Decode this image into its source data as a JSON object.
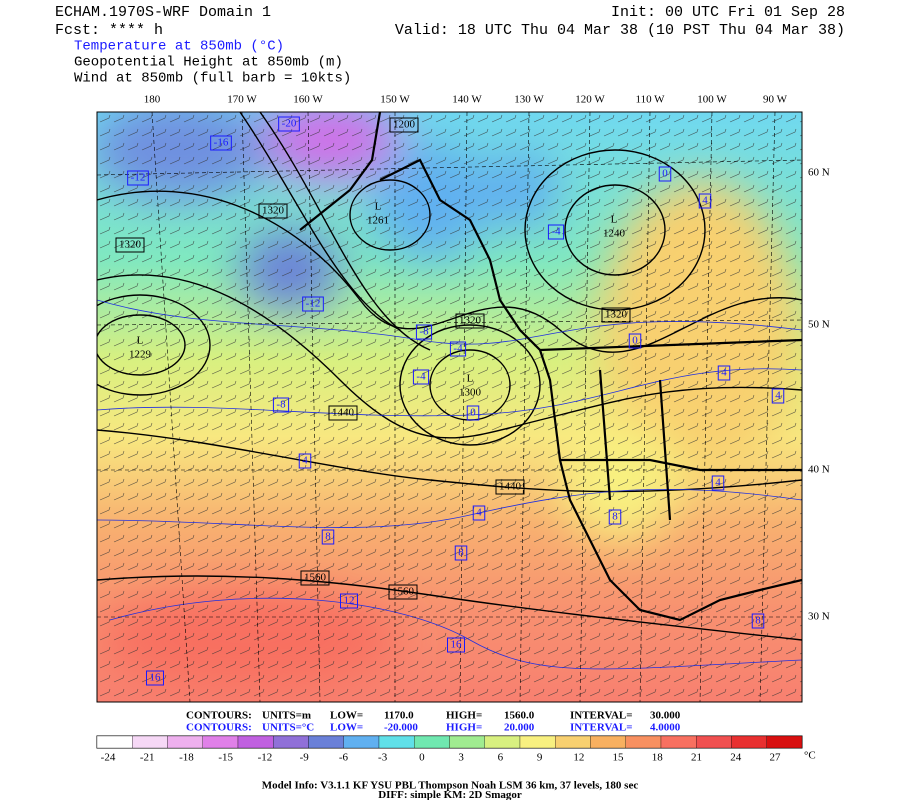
{
  "header": {
    "left": [
      "ECHAM.1970S-WRF Domain 1",
      "Fcst: **** h"
    ],
    "right": [
      "Init: 00 UTC Fri 01 Sep 28",
      "Valid: 18 UTC Thu 04 Mar 38 (10 PST Thu 04 Mar 38)"
    ],
    "fields": [
      "Temperature at 850mb (°C)",
      "Geopotential Height at 850mb (m)",
      "Wind at 850mb (full barb = 10kts)"
    ]
  },
  "longitudes": [
    "180",
    "170 W",
    "160 W",
    "150 W",
    "140 W",
    "130 W",
    "120 W",
    "110 W",
    "100 W",
    "90 W"
  ],
  "latitudes": [
    "60 N",
    "50 N",
    "40 N",
    "30 N"
  ],
  "height_labels": [
    "1200",
    "1320",
    "1320",
    "1320",
    "1320",
    "1440",
    "1440",
    "1560",
    "1560"
  ],
  "temp_labels": [
    "-16",
    "-12",
    "-20",
    "-12",
    "-8",
    "-4",
    "-4",
    "-8",
    "0",
    "-4",
    "0",
    "4",
    "0",
    "4",
    "4",
    "4",
    "8",
    "4",
    "8",
    "12",
    "16",
    "16",
    "8",
    "4",
    "8"
  ],
  "pressure_centers": [
    {
      "symbol": "L",
      "value": "1240"
    },
    {
      "symbol": "L",
      "value": "1229"
    },
    {
      "symbol": "L",
      "value": "1300"
    },
    {
      "symbol": "L",
      "value": "1261"
    }
  ],
  "contour_info": [
    [
      "CONTOURS:",
      "UNITS=m",
      "LOW=",
      "1170.0",
      "HIGH=",
      "1560.0",
      "INTERVAL=",
      "30.000"
    ],
    [
      "CONTOURS:",
      "UNITS=°C",
      "LOW=",
      "-20.000",
      "HIGH=",
      "20.000",
      "INTERVAL=",
      "4.0000"
    ]
  ],
  "colorbar": {
    "labels": [
      "-24",
      "-21",
      "-18",
      "-15",
      "-12",
      "-9",
      "-6",
      "-3",
      "0",
      "3",
      "6",
      "9",
      "12",
      "15",
      "18",
      "21",
      "24",
      "27"
    ],
    "unit": "°C",
    "colors": [
      "#ffffff",
      "#f6d8f6",
      "#eeb0ee",
      "#e080e8",
      "#c060e0",
      "#9070d8",
      "#6a80d8",
      "#60b0f0",
      "#60e0e8",
      "#70e8b0",
      "#a0ec90",
      "#d8f080",
      "#f8f080",
      "#f8d070",
      "#f8b060",
      "#f89060",
      "#f87060",
      "#f05050",
      "#e83030",
      "#d81010"
    ]
  },
  "footer": [
    "Model Info: V3.1.1    KF     YSU PBL  Thompson     Noah LSM  36 km,    37 levels,   180 sec",
    "DIFF: simple KM: 2D Smagor"
  ]
}
